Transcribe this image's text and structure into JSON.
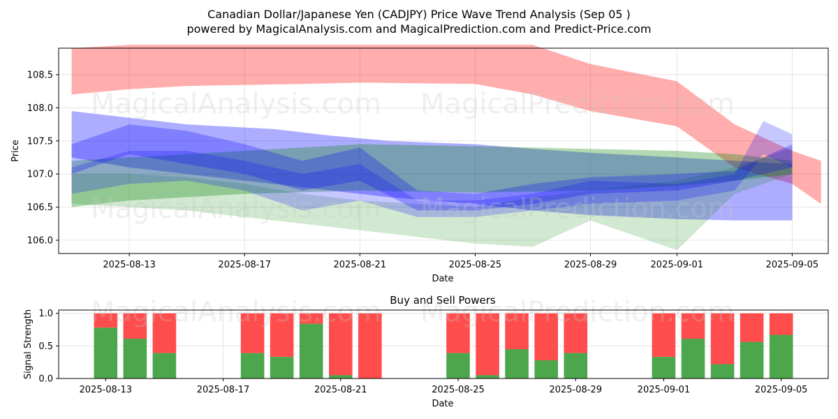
{
  "title_line1": "Canadian Dollar/Japanese Yen (CADJPY) Price Wave Trend Analysis (Sep 05 )",
  "title_line2": "powered by MagicalAnalysis.com and MagicalPrediction.com and Predict-Price.com",
  "watermarks": [
    "MagicalAnalysis.com",
    "MagicalPrediction.com"
  ],
  "chart_data": [
    {
      "type": "area",
      "xlabel": "Date",
      "ylabel": "Price",
      "ylim": [
        105.8,
        108.9
      ],
      "x_ticks": [
        "2025-08-13",
        "2025-08-17",
        "2025-08-21",
        "2025-08-25",
        "2025-08-29",
        "2025-09-01",
        "2025-09-05"
      ],
      "y_ticks": [
        106.0,
        106.5,
        107.0,
        107.5,
        108.0,
        108.5
      ],
      "grid": true,
      "bands": [
        {
          "color": "#ff0000",
          "opacity": 0.32,
          "x": [
            "2025-08-11",
            "2025-08-13",
            "2025-08-15",
            "2025-08-19",
            "2025-08-21",
            "2025-08-25",
            "2025-08-27",
            "2025-08-29",
            "2025-09-01",
            "2025-09-03",
            "2025-09-05",
            "2025-09-06"
          ],
          "upper": [
            108.9,
            108.95,
            108.95,
            108.95,
            108.95,
            108.95,
            108.95,
            108.66,
            108.4,
            107.75,
            107.35,
            107.2
          ],
          "lower": [
            108.2,
            108.28,
            108.33,
            108.36,
            108.38,
            108.36,
            108.2,
            107.95,
            107.72,
            107.1,
            106.85,
            106.55
          ]
        },
        {
          "color": "#0000ff",
          "opacity": 0.32,
          "x": [
            "2025-08-11",
            "2025-08-13",
            "2025-08-15",
            "2025-08-18",
            "2025-08-20",
            "2025-08-22",
            "2025-08-25",
            "2025-08-27",
            "2025-08-29",
            "2025-09-01",
            "2025-09-03",
            "2025-09-05"
          ],
          "upper": [
            107.95,
            107.85,
            107.75,
            107.68,
            107.58,
            107.5,
            107.45,
            107.38,
            107.32,
            107.25,
            107.2,
            107.15
          ],
          "lower": [
            107.25,
            107.1,
            107.0,
            106.85,
            106.75,
            106.65,
            106.55,
            106.45,
            106.38,
            106.32,
            106.3,
            106.3
          ]
        },
        {
          "color": "#008000",
          "opacity": 0.3,
          "x": [
            "2025-08-11",
            "2025-08-13",
            "2025-08-17",
            "2025-08-21",
            "2025-08-25",
            "2025-08-29",
            "2025-09-01",
            "2025-09-03",
            "2025-09-05"
          ],
          "upper": [
            107.2,
            107.25,
            107.35,
            107.45,
            107.42,
            107.38,
            107.35,
            107.3,
            107.2
          ],
          "lower": [
            106.5,
            106.6,
            106.7,
            106.75,
            106.72,
            106.75,
            106.82,
            106.9,
            107.0
          ]
        },
        {
          "color": "#008000",
          "opacity": 0.18,
          "x": [
            "2025-08-11",
            "2025-08-13",
            "2025-08-15",
            "2025-08-17",
            "2025-08-19",
            "2025-08-21",
            "2025-08-23",
            "2025-08-25",
            "2025-08-27",
            "2025-08-29",
            "2025-09-01",
            "2025-09-03",
            "2025-09-05"
          ],
          "upper": [
            107.0,
            107.0,
            106.95,
            106.85,
            106.7,
            106.6,
            106.55,
            106.5,
            106.65,
            106.75,
            106.9,
            107.1,
            107.4
          ],
          "lower": [
            106.55,
            106.5,
            106.45,
            106.35,
            106.25,
            106.15,
            106.05,
            105.95,
            105.9,
            106.3,
            105.85,
            106.7,
            107.0
          ]
        },
        {
          "color": "#0000ff",
          "opacity": 0.26,
          "x": [
            "2025-08-11",
            "2025-08-13",
            "2025-08-15",
            "2025-08-17",
            "2025-08-19",
            "2025-08-21",
            "2025-08-23",
            "2025-08-25",
            "2025-08-27",
            "2025-08-29",
            "2025-09-01",
            "2025-09-03",
            "2025-09-05"
          ],
          "upper": [
            107.45,
            107.75,
            107.65,
            107.45,
            107.2,
            107.4,
            106.75,
            106.7,
            106.85,
            106.95,
            107.0,
            107.05,
            107.45
          ],
          "lower": [
            107.0,
            107.3,
            107.15,
            107.0,
            106.75,
            106.9,
            106.45,
            106.45,
            106.55,
            106.7,
            106.75,
            106.9,
            107.1
          ]
        },
        {
          "color": "#0000ff",
          "opacity": 0.22,
          "x": [
            "2025-08-11",
            "2025-08-13",
            "2025-08-15",
            "2025-08-17",
            "2025-08-19",
            "2025-08-21",
            "2025-08-23",
            "2025-08-25",
            "2025-08-27",
            "2025-08-29",
            "2025-09-01",
            "2025-09-03",
            "2025-09-04",
            "2025-09-05"
          ],
          "upper": [
            107.1,
            107.35,
            107.35,
            107.2,
            107.0,
            107.15,
            106.6,
            106.6,
            106.7,
            106.9,
            106.85,
            107.0,
            107.8,
            107.6
          ],
          "lower": [
            106.7,
            106.85,
            106.9,
            106.75,
            106.45,
            106.6,
            106.35,
            106.35,
            106.45,
            106.55,
            106.6,
            106.75,
            107.3,
            107.1
          ]
        }
      ]
    },
    {
      "type": "bar",
      "title": "Buy and Sell Powers",
      "xlabel": "Date",
      "ylabel": "Signal Strength",
      "ylim": [
        0,
        1.05
      ],
      "y_ticks": [
        0.0,
        0.5,
        1.0
      ],
      "x_ticks": [
        "2025-08-13",
        "2025-08-17",
        "2025-08-21",
        "2025-08-25",
        "2025-08-29",
        "2025-09-01",
        "2025-09-05"
      ],
      "grid": true,
      "series": [
        {
          "name": "buy",
          "color": "#4ca64c"
        },
        {
          "name": "sell",
          "color": "#ff4c4c"
        }
      ],
      "bars": [
        {
          "date": "2025-08-13",
          "buy": 0.78
        },
        {
          "date": "2025-08-14",
          "buy": 0.61
        },
        {
          "date": "2025-08-15",
          "buy": 0.39
        },
        {
          "date": "2025-08-18",
          "buy": 0.39
        },
        {
          "date": "2025-08-19",
          "buy": 0.33
        },
        {
          "date": "2025-08-20",
          "buy": 0.84
        },
        {
          "date": "2025-08-21",
          "buy": 0.05
        },
        {
          "date": "2025-08-22",
          "buy": 0.0
        },
        {
          "date": "2025-08-25",
          "buy": 0.39
        },
        {
          "date": "2025-08-26",
          "buy": 0.05
        },
        {
          "date": "2025-08-27",
          "buy": 0.45
        },
        {
          "date": "2025-08-28",
          "buy": 0.28
        },
        {
          "date": "2025-08-29",
          "buy": 0.39
        },
        {
          "date": "2025-09-01",
          "buy": 0.33
        },
        {
          "date": "2025-09-02",
          "buy": 0.61
        },
        {
          "date": "2025-09-03",
          "buy": 0.22
        },
        {
          "date": "2025-09-04",
          "buy": 0.56
        },
        {
          "date": "2025-09-05",
          "buy": 0.67
        }
      ]
    }
  ]
}
